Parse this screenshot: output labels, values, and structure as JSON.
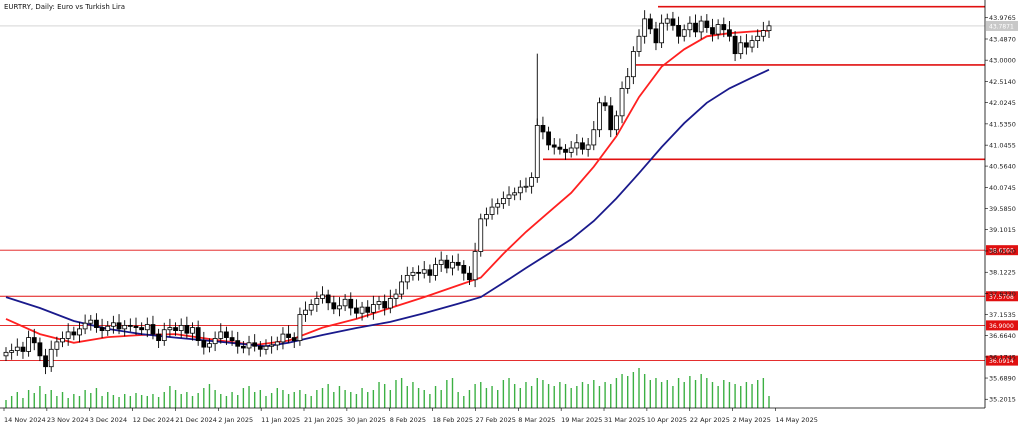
{
  "window": {
    "title": "EURTRY, Daily:  Euro vs Turkish Lira"
  },
  "colors": {
    "background": "#ffffff",
    "candle": "#000000",
    "ma_fast": "#ff2020",
    "ma_slow": "#1a1a8c",
    "level_line": "#e01010",
    "level_tag": "#e01010",
    "volume": "#3cb043",
    "price_marker": "#c8c8c8"
  },
  "chart_data": {
    "type": "candlestick",
    "title": "EURTRY, Daily:  Euro vs Turkish Lira",
    "ylim": [
      35.0,
      44.2
    ],
    "y_ticks": [
      "43.9765",
      "43.4870",
      "43.0000",
      "42.5140",
      "42.0245",
      "41.5350",
      "41.0455",
      "40.5640",
      "40.0745",
      "39.5850",
      "39.1015",
      "38.6120",
      "38.1225",
      "37.6330",
      "37.1535",
      "36.6640",
      "36.1745",
      "35.6890",
      "35.2015"
    ],
    "x_labels": [
      "14 Nov 2024",
      "23 Nov 2024",
      "3 Dec 2024",
      "12 Dec 2024",
      "21 Dec 2024",
      "2 Jan 2025",
      "11 Jan 2025",
      "21 Jan 2025",
      "30 Jan 2025",
      "8 Feb 2025",
      "18 Feb 2025",
      "27 Feb 2025",
      "8 Mar 2025",
      "19 Mar 2025",
      "31 Mar 2025",
      "10 Apr 2025",
      "22 Apr 2025",
      "2 May 2025",
      "14 May 2025"
    ],
    "current_price": "43.7871",
    "levels": [
      {
        "price": 44.23,
        "label": ""
      },
      {
        "price": 42.89,
        "label": ""
      },
      {
        "price": 40.72,
        "label": ""
      },
      {
        "price": 38.63,
        "label": "38.6300"
      },
      {
        "price": 37.57,
        "label": "37.5708"
      },
      {
        "price": 36.9,
        "label": "36.9000"
      },
      {
        "price": 36.09,
        "label": "36.0914"
      }
    ],
    "series": [
      {
        "name": "",
        "kind": "ohlc",
        "closes": [
          36.28,
          36.32,
          36.4,
          36.3,
          36.62,
          36.5,
          36.2,
          35.95,
          36.35,
          36.52,
          36.6,
          36.75,
          36.68,
          36.82,
          36.95,
          37.02,
          36.85,
          36.78,
          36.88,
          36.96,
          36.82,
          36.9,
          36.88,
          36.85,
          36.8,
          36.92,
          36.7,
          36.55,
          36.8,
          36.85,
          36.78,
          36.9,
          36.72,
          36.85,
          36.55,
          36.4,
          36.48,
          36.6,
          36.75,
          36.62,
          36.55,
          36.42,
          36.38,
          36.5,
          36.42,
          36.35,
          36.42,
          36.45,
          36.52,
          36.7,
          36.62,
          36.55,
          37.15,
          37.25,
          37.38,
          37.52,
          37.6,
          37.42,
          37.28,
          37.35,
          37.5,
          37.3,
          37.18,
          37.32,
          37.2,
          37.38,
          37.45,
          37.3,
          37.52,
          37.62,
          37.9,
          38.05,
          38.12,
          38.1,
          38.18,
          38.05,
          38.3,
          38.4,
          38.22,
          38.35,
          38.28,
          38.1,
          37.95,
          38.6,
          39.35,
          39.45,
          39.62,
          39.7,
          39.82,
          39.9,
          39.95,
          40.08,
          40.1,
          40.3,
          41.5,
          41.35,
          41.05,
          41.0,
          40.95,
          40.88,
          40.98,
          41.1,
          40.95,
          41.05,
          41.4,
          42.02,
          41.95,
          41.4,
          41.72,
          42.35,
          42.62,
          43.2,
          43.55,
          43.95,
          43.72,
          43.4,
          43.85,
          43.95,
          43.8,
          43.55,
          43.7,
          43.85,
          43.65,
          43.9,
          43.75,
          43.6,
          43.82,
          43.7,
          43.55,
          43.15,
          43.4,
          43.3,
          43.45,
          43.55,
          43.68,
          43.79
        ]
      },
      {
        "name": "",
        "kind": "ma_fast",
        "values": [
          [
            0,
            37.05
          ],
          [
            6,
            36.7
          ],
          [
            12,
            36.5
          ],
          [
            18,
            36.63
          ],
          [
            24,
            36.68
          ],
          [
            30,
            36.7
          ],
          [
            38,
            36.55
          ],
          [
            44,
            36.45
          ],
          [
            50,
            36.55
          ],
          [
            56,
            36.85
          ],
          [
            62,
            37.05
          ],
          [
            68,
            37.3
          ],
          [
            74,
            37.55
          ],
          [
            80,
            37.82
          ],
          [
            84,
            38.0
          ],
          [
            88,
            38.55
          ],
          [
            92,
            39.05
          ],
          [
            96,
            39.5
          ],
          [
            100,
            39.95
          ],
          [
            104,
            40.55
          ],
          [
            108,
            41.25
          ],
          [
            112,
            42.15
          ],
          [
            116,
            42.85
          ],
          [
            120,
            43.25
          ],
          [
            124,
            43.55
          ],
          [
            128,
            43.62
          ],
          [
            132,
            43.66
          ],
          [
            135,
            43.68
          ]
        ]
      },
      {
        "name": "",
        "kind": "ma_slow",
        "values": [
          [
            0,
            37.55
          ],
          [
            6,
            37.3
          ],
          [
            12,
            37.0
          ],
          [
            18,
            36.82
          ],
          [
            24,
            36.7
          ],
          [
            30,
            36.62
          ],
          [
            38,
            36.52
          ],
          [
            46,
            36.42
          ],
          [
            50,
            36.5
          ],
          [
            56,
            36.68
          ],
          [
            62,
            36.84
          ],
          [
            68,
            36.98
          ],
          [
            74,
            37.18
          ],
          [
            80,
            37.4
          ],
          [
            84,
            37.55
          ],
          [
            88,
            37.88
          ],
          [
            92,
            38.22
          ],
          [
            96,
            38.55
          ],
          [
            100,
            38.88
          ],
          [
            104,
            39.3
          ],
          [
            108,
            39.82
          ],
          [
            112,
            40.4
          ],
          [
            116,
            41.0
          ],
          [
            120,
            41.55
          ],
          [
            124,
            42.02
          ],
          [
            128,
            42.35
          ],
          [
            132,
            42.6
          ],
          [
            135,
            42.78
          ]
        ]
      },
      {
        "name": "",
        "kind": "volume",
        "values": [
          8,
          12,
          16,
          10,
          18,
          15,
          22,
          14,
          18,
          12,
          16,
          10,
          14,
          12,
          18,
          15,
          20,
          12,
          16,
          13,
          11,
          14,
          12,
          15,
          13,
          12,
          14,
          11,
          16,
          22,
          18,
          14,
          16,
          12,
          15,
          20,
          24,
          18,
          14,
          12,
          16,
          13,
          20,
          22,
          16,
          18,
          12,
          15,
          20,
          18,
          14,
          16,
          18,
          14,
          12,
          18,
          20,
          24,
          16,
          22,
          18,
          16,
          14,
          20,
          16,
          18,
          26,
          24,
          18,
          28,
          30,
          22,
          26,
          20,
          18,
          14,
          22,
          18,
          28,
          30,
          16,
          12,
          18,
          24,
          26,
          20,
          22,
          18,
          28,
          30,
          24,
          20,
          26,
          22,
          30,
          28,
          24,
          22,
          26,
          24,
          20,
          22,
          26,
          24,
          28,
          22,
          26,
          24,
          30,
          34,
          32,
          36,
          40,
          34,
          28,
          30,
          26,
          28,
          22,
          30,
          26,
          32,
          28,
          34,
          30,
          26,
          22,
          28,
          26,
          24,
          22,
          26,
          24,
          28,
          30,
          12
        ]
      }
    ]
  }
}
